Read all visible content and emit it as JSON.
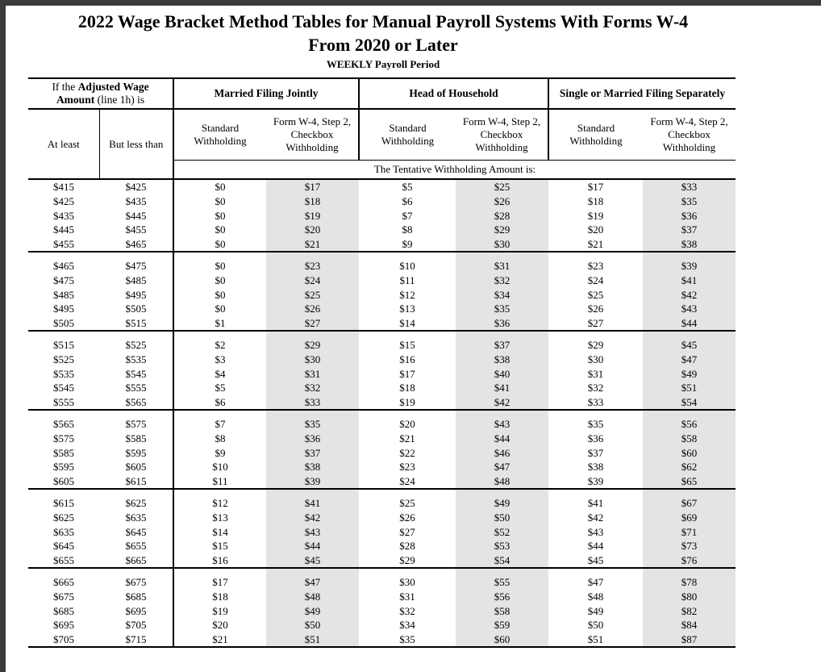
{
  "page": {
    "title_line1": "2022 Wage Bracket Method Tables for Manual Payroll Systems With Forms W-4",
    "title_line2": "From 2020 or Later",
    "subtitle": "WEEKLY Payroll Period"
  },
  "table": {
    "wage_header": {
      "prefix": "If the ",
      "bold": "Adjusted Wage Amount",
      "suffix": " (line 1h) is"
    },
    "filing_groups": [
      "Married Filing Jointly",
      "Head of Household",
      "Single or Married Filing Separately"
    ],
    "sub_headers": {
      "at_least": "At least",
      "but_less_than": "But less than",
      "standard": "Standard Withholding",
      "checkbox": "Form W-4, Step 2, Checkbox Withholding"
    },
    "tentative_label": "The Tentative Withholding Amount is:",
    "column_semantics": [
      "at_least",
      "but_less_than",
      "mfj_standard",
      "mfj_checkbox",
      "hoh_standard",
      "hoh_checkbox",
      "single_standard",
      "single_checkbox"
    ],
    "groups": [
      [
        [
          "$415",
          "$425",
          "$0",
          "$17",
          "$5",
          "$25",
          "$17",
          "$33"
        ],
        [
          "$425",
          "$435",
          "$0",
          "$18",
          "$6",
          "$26",
          "$18",
          "$35"
        ],
        [
          "$435",
          "$445",
          "$0",
          "$19",
          "$7",
          "$28",
          "$19",
          "$36"
        ],
        [
          "$445",
          "$455",
          "$0",
          "$20",
          "$8",
          "$29",
          "$20",
          "$37"
        ],
        [
          "$455",
          "$465",
          "$0",
          "$21",
          "$9",
          "$30",
          "$21",
          "$38"
        ]
      ],
      [
        [
          "$465",
          "$475",
          "$0",
          "$23",
          "$10",
          "$31",
          "$23",
          "$39"
        ],
        [
          "$475",
          "$485",
          "$0",
          "$24",
          "$11",
          "$32",
          "$24",
          "$41"
        ],
        [
          "$485",
          "$495",
          "$0",
          "$25",
          "$12",
          "$34",
          "$25",
          "$42"
        ],
        [
          "$495",
          "$505",
          "$0",
          "$26",
          "$13",
          "$35",
          "$26",
          "$43"
        ],
        [
          "$505",
          "$515",
          "$1",
          "$27",
          "$14",
          "$36",
          "$27",
          "$44"
        ]
      ],
      [
        [
          "$515",
          "$525",
          "$2",
          "$29",
          "$15",
          "$37",
          "$29",
          "$45"
        ],
        [
          "$525",
          "$535",
          "$3",
          "$30",
          "$16",
          "$38",
          "$30",
          "$47"
        ],
        [
          "$535",
          "$545",
          "$4",
          "$31",
          "$17",
          "$40",
          "$31",
          "$49"
        ],
        [
          "$545",
          "$555",
          "$5",
          "$32",
          "$18",
          "$41",
          "$32",
          "$51"
        ],
        [
          "$555",
          "$565",
          "$6",
          "$33",
          "$19",
          "$42",
          "$33",
          "$54"
        ]
      ],
      [
        [
          "$565",
          "$575",
          "$7",
          "$35",
          "$20",
          "$43",
          "$35",
          "$56"
        ],
        [
          "$575",
          "$585",
          "$8",
          "$36",
          "$21",
          "$44",
          "$36",
          "$58"
        ],
        [
          "$585",
          "$595",
          "$9",
          "$37",
          "$22",
          "$46",
          "$37",
          "$60"
        ],
        [
          "$595",
          "$605",
          "$10",
          "$38",
          "$23",
          "$47",
          "$38",
          "$62"
        ],
        [
          "$605",
          "$615",
          "$11",
          "$39",
          "$24",
          "$48",
          "$39",
          "$65"
        ]
      ],
      [
        [
          "$615",
          "$625",
          "$12",
          "$41",
          "$25",
          "$49",
          "$41",
          "$67"
        ],
        [
          "$625",
          "$635",
          "$13",
          "$42",
          "$26",
          "$50",
          "$42",
          "$69"
        ],
        [
          "$635",
          "$645",
          "$14",
          "$43",
          "$27",
          "$52",
          "$43",
          "$71"
        ],
        [
          "$645",
          "$655",
          "$15",
          "$44",
          "$28",
          "$53",
          "$44",
          "$73"
        ],
        [
          "$655",
          "$665",
          "$16",
          "$45",
          "$29",
          "$54",
          "$45",
          "$76"
        ]
      ],
      [
        [
          "$665",
          "$675",
          "$17",
          "$47",
          "$30",
          "$55",
          "$47",
          "$78"
        ],
        [
          "$675",
          "$685",
          "$18",
          "$48",
          "$31",
          "$56",
          "$48",
          "$80"
        ],
        [
          "$685",
          "$695",
          "$19",
          "$49",
          "$32",
          "$58",
          "$49",
          "$82"
        ],
        [
          "$695",
          "$705",
          "$20",
          "$50",
          "$34",
          "$59",
          "$50",
          "$84"
        ],
        [
          "$705",
          "$715",
          "$21",
          "$51",
          "$35",
          "$60",
          "$51",
          "$87"
        ]
      ]
    ]
  },
  "colors": {
    "shaded_column": "#e4e4e4",
    "frame_bar": "#3a3a3a",
    "border": "#000000",
    "page_background": "#ffffff"
  }
}
